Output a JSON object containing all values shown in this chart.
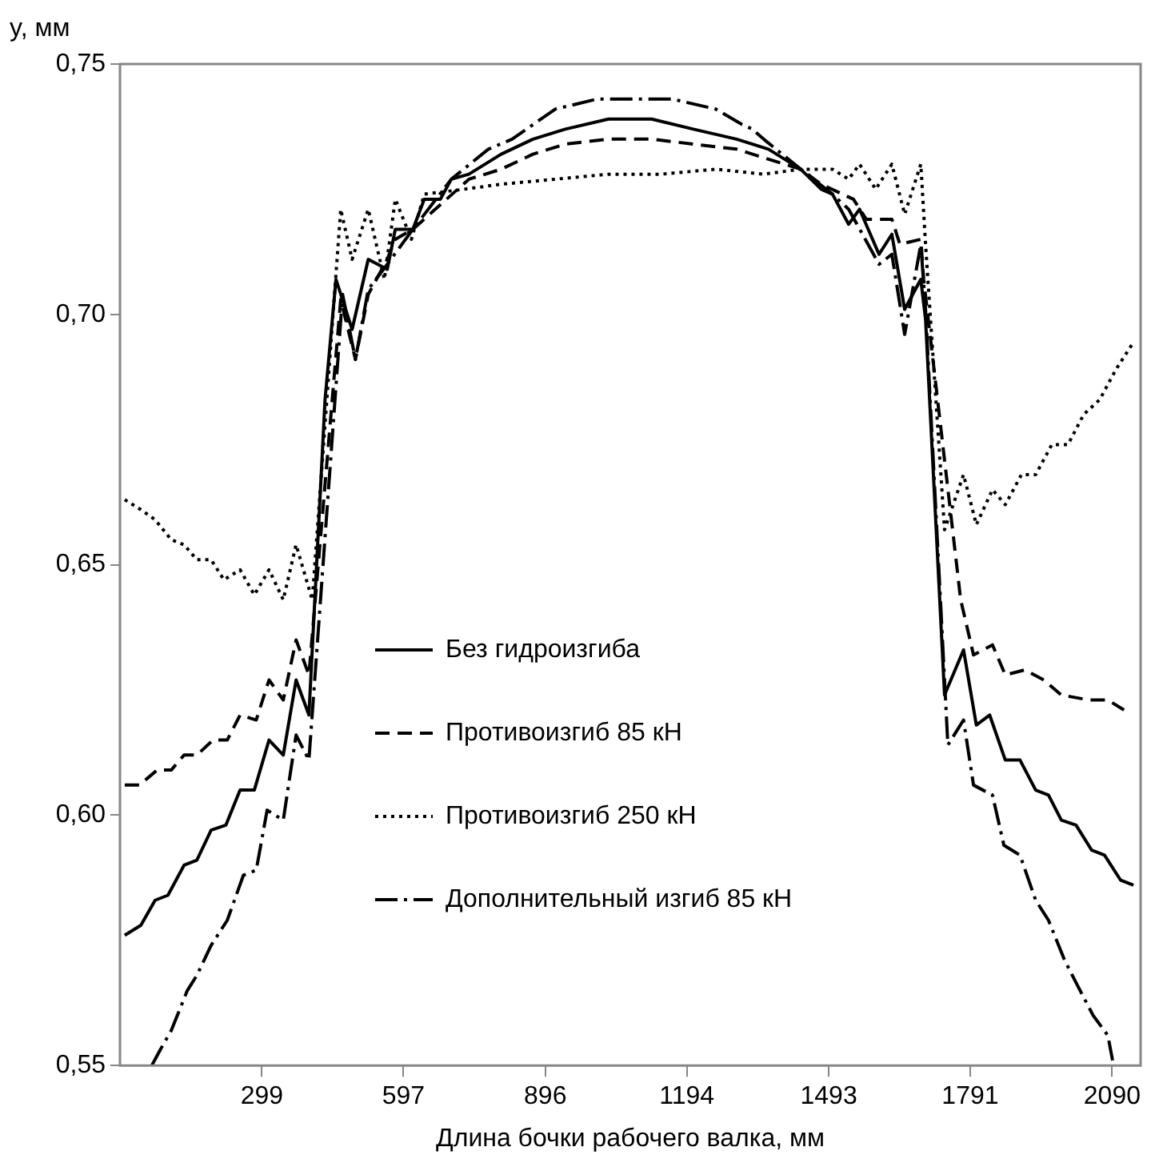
{
  "chart_data": {
    "type": "line",
    "xlabel": "Длина бочки рабочего валка, мм",
    "ylabel": "y, мм",
    "xlim": [
      0,
      2150
    ],
    "xticks": [
      299,
      597,
      896,
      1194,
      1493,
      1791,
      2090
    ],
    "ylim": [
      0.55,
      0.75
    ],
    "yticks": [
      {
        "value": 0.55,
        "label": "0,55"
      },
      {
        "value": 0.6,
        "label": "0,60"
      },
      {
        "value": 0.65,
        "label": "0,65"
      },
      {
        "value": 0.7,
        "label": "0,70"
      },
      {
        "value": 0.75,
        "label": "0,75"
      }
    ],
    "grid": false,
    "legend": "center",
    "marker": "none",
    "series": [
      {
        "name": "Без гидроизгиба",
        "color": "#000000",
        "line_style": "solid",
        "x": [
          10,
          44,
          74,
          101,
          135,
          162,
          192,
          223,
          253,
          283,
          314,
          344,
          371,
          398,
          432,
          455,
          489,
          523,
          563,
          580,
          617,
          641,
          675,
          698,
          735,
          803,
          870,
          938,
          1029,
          1120,
          1208,
          1299,
          1366,
          1434,
          1477,
          1501,
          1535,
          1558,
          1599,
          1626,
          1653,
          1687,
          1697,
          1737,
          1777,
          1804,
          1832,
          1865,
          1896,
          1929,
          1956,
          1983,
          2014,
          2047,
          2074,
          2108,
          2135
        ],
        "values": [
          0.576,
          0.578,
          0.583,
          0.584,
          0.59,
          0.591,
          0.597,
          0.598,
          0.605,
          0.605,
          0.615,
          0.612,
          0.627,
          0.62,
          0.683,
          0.707,
          0.697,
          0.711,
          0.709,
          0.717,
          0.717,
          0.723,
          0.723,
          0.727,
          0.728,
          0.732,
          0.735,
          0.737,
          0.739,
          0.739,
          0.737,
          0.735,
          0.733,
          0.729,
          0.725,
          0.724,
          0.718,
          0.721,
          0.712,
          0.716,
          0.701,
          0.707,
          0.699,
          0.624,
          0.633,
          0.618,
          0.62,
          0.611,
          0.611,
          0.605,
          0.604,
          0.599,
          0.598,
          0.593,
          0.592,
          0.587,
          0.586
        ]
      },
      {
        "name": "Противоизгиб 85 кН",
        "color": "#000000",
        "line_style": "dashed",
        "x": [
          10,
          41,
          78,
          108,
          135,
          162,
          196,
          226,
          253,
          287,
          314,
          344,
          371,
          398,
          465,
          496,
          523,
          563,
          580,
          617,
          735,
          803,
          870,
          938,
          1029,
          1120,
          1208,
          1299,
          1366,
          1434,
          1477,
          1545,
          1572,
          1626,
          1643,
          1687,
          1693,
          1771,
          1798,
          1838,
          1865,
          1906,
          1946,
          1983,
          2041,
          2081,
          2115
        ],
        "values": [
          0.606,
          0.606,
          0.609,
          0.609,
          0.612,
          0.612,
          0.615,
          0.615,
          0.62,
          0.619,
          0.627,
          0.623,
          0.635,
          0.628,
          0.703,
          0.691,
          0.704,
          0.711,
          0.715,
          0.717,
          0.727,
          0.729,
          0.732,
          0.734,
          0.735,
          0.735,
          0.734,
          0.733,
          0.731,
          0.729,
          0.726,
          0.723,
          0.719,
          0.719,
          0.714,
          0.715,
          0.707,
          0.643,
          0.632,
          0.634,
          0.628,
          0.629,
          0.627,
          0.624,
          0.623,
          0.623,
          0.621
        ]
      },
      {
        "name": "Противоизгиб 250 кН",
        "color": "#000000",
        "line_style": "dotted",
        "x": [
          10,
          44,
          74,
          108,
          135,
          162,
          192,
          219,
          253,
          283,
          314,
          344,
          371,
          405,
          465,
          489,
          523,
          557,
          580,
          614,
          641,
          725,
          803,
          917,
          1029,
          1140,
          1255,
          1356,
          1434,
          1501,
          1535,
          1558,
          1592,
          1626,
          1653,
          1687,
          1697,
          1737,
          1777,
          1804,
          1838,
          1865,
          1899,
          1929,
          1963,
          1997,
          2030,
          2064,
          2098,
          2132
        ],
        "values": [
          0.663,
          0.661,
          0.659,
          0.655,
          0.654,
          0.651,
          0.651,
          0.647,
          0.649,
          0.644,
          0.649,
          0.643,
          0.654,
          0.643,
          0.721,
          0.711,
          0.721,
          0.707,
          0.723,
          0.715,
          0.724,
          0.725,
          0.726,
          0.727,
          0.728,
          0.728,
          0.729,
          0.728,
          0.729,
          0.729,
          0.727,
          0.73,
          0.725,
          0.73,
          0.72,
          0.73,
          0.714,
          0.657,
          0.668,
          0.658,
          0.665,
          0.662,
          0.668,
          0.668,
          0.674,
          0.674,
          0.68,
          0.683,
          0.689,
          0.694
        ]
      },
      {
        "name": "Дополнительный изгиб 85 кН",
        "color": "#000000",
        "line_style": "dashdot",
        "x": [
          67,
          84,
          108,
          142,
          162,
          192,
          226,
          260,
          287,
          310,
          344,
          371,
          398,
          469,
          496,
          523,
          563,
          617,
          698,
          776,
          826,
          917,
          1005,
          1086,
          1164,
          1255,
          1309,
          1332,
          1356,
          1434,
          1501,
          1535,
          1599,
          1626,
          1653,
          1687,
          1697,
          1744,
          1777,
          1798,
          1838,
          1862,
          1896,
          1929,
          1956,
          1990,
          2017,
          2050,
          2081,
          2091
        ],
        "values": [
          0.55,
          0.553,
          0.557,
          0.565,
          0.568,
          0.574,
          0.579,
          0.588,
          0.589,
          0.601,
          0.599,
          0.616,
          0.611,
          0.704,
          0.691,
          0.705,
          0.71,
          0.717,
          0.727,
          0.733,
          0.735,
          0.741,
          0.743,
          0.743,
          0.743,
          0.741,
          0.738,
          0.737,
          0.735,
          0.729,
          0.724,
          0.721,
          0.71,
          0.712,
          0.696,
          0.714,
          0.701,
          0.614,
          0.619,
          0.606,
          0.604,
          0.594,
          0.592,
          0.583,
          0.579,
          0.571,
          0.566,
          0.56,
          0.556,
          0.551
        ]
      }
    ]
  }
}
